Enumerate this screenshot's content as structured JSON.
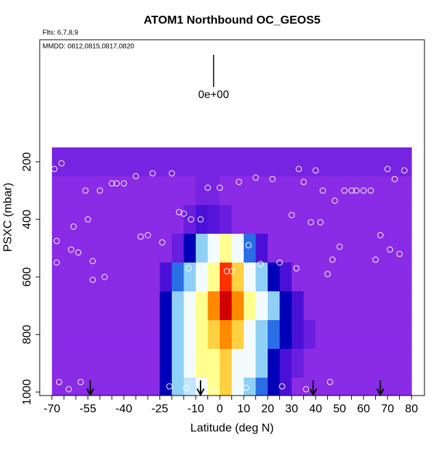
{
  "chart_data": {
    "type": "heatmap",
    "title": "ATOM1 Northbound OC_GEOS5",
    "subtitle": "Flts: 6,7,8,9",
    "annotation": "MMDD: 0812,0815,0817,0820",
    "legend_label": "0e+00",
    "xlabel": "Latitude (deg N)",
    "ylabel": "PSXC (mbar)",
    "xlim": [
      -75.1,
      85.4
    ],
    "ylim": [
      1012,
      -224
    ],
    "xticks": [
      -70,
      -55,
      -40,
      -25,
      -10,
      0,
      10,
      20,
      30,
      40,
      50,
      60,
      70,
      80
    ],
    "xminor": [
      -65,
      -60,
      -50,
      -45,
      -35,
      -30,
      -20,
      -15,
      -5,
      5,
      15,
      25,
      35,
      45,
      55,
      65,
      75
    ],
    "yticks": [
      200,
      400,
      600,
      800,
      1000
    ],
    "x": [
      -70,
      -65,
      -60,
      -55,
      -50,
      -45,
      -40,
      -35,
      -30,
      -25,
      -20,
      -15,
      -10,
      -5,
      0,
      5,
      10,
      15,
      20,
      25,
      30,
      35,
      40,
      45,
      50,
      55,
      60,
      65,
      70,
      75
    ],
    "y": [
      200,
      300,
      400,
      500,
      600,
      700,
      800,
      900,
      1000
    ],
    "z": [
      [
        0.3,
        0.3,
        0.3,
        0.3,
        0.3,
        0.3,
        0.3,
        0.3,
        0.3,
        0.3,
        0.3,
        0.3,
        0.3,
        0.3,
        0.3,
        0.3,
        0.3,
        0.3,
        0.3,
        0.3,
        0.3,
        0.3,
        0.3,
        0.3,
        0.3,
        0.3,
        0.3,
        0.3,
        0.3,
        0.3
      ],
      [
        0,
        0,
        0,
        0,
        0,
        0,
        0,
        0,
        0,
        0,
        0,
        0,
        0.3,
        0.3,
        0,
        0,
        0,
        0,
        0,
        0,
        0,
        0,
        0,
        0,
        0,
        0,
        0,
        0,
        0,
        0
      ],
      [
        0,
        0,
        0,
        0,
        0,
        0,
        0,
        0,
        0,
        0,
        0,
        0.5,
        1,
        0.8,
        0.5,
        0,
        0,
        0,
        0,
        0,
        0,
        0,
        0,
        0,
        0,
        0,
        0,
        0,
        0,
        0
      ],
      [
        0,
        0,
        0,
        0,
        0,
        0,
        0,
        0,
        0,
        0,
        0.5,
        2,
        4,
        5,
        6,
        5,
        3,
        1,
        0,
        0,
        0,
        0,
        0,
        0,
        0,
        0,
        0,
        0,
        0,
        0
      ],
      [
        0,
        0,
        0,
        0,
        0,
        0,
        0,
        0,
        0,
        1,
        3,
        4,
        5,
        6,
        9,
        7,
        5,
        4,
        2,
        1,
        0,
        0,
        0,
        0,
        0,
        0,
        0,
        0,
        0,
        0
      ],
      [
        0,
        0,
        0,
        0,
        0,
        0,
        0,
        0,
        0,
        2,
        4,
        5,
        6,
        8,
        10,
        8,
        6,
        5,
        4,
        2,
        1,
        0,
        0,
        0,
        0,
        0,
        0,
        0,
        0,
        0
      ],
      [
        0,
        0,
        0,
        0,
        0,
        0,
        0,
        0,
        0,
        2,
        4,
        5,
        6,
        7,
        8,
        7,
        5,
        4,
        3,
        2,
        1,
        0.5,
        0,
        0,
        0,
        0,
        0,
        0,
        0,
        0
      ],
      [
        0,
        0,
        0,
        0,
        0,
        0,
        0,
        0,
        0,
        2,
        4,
        5,
        6,
        6,
        7,
        5,
        5,
        4,
        2,
        1,
        0.5,
        0,
        0,
        0,
        0,
        0,
        0,
        0,
        0,
        0
      ],
      [
        0,
        0,
        0,
        0,
        0,
        0,
        0,
        0,
        0,
        2,
        4,
        4.5,
        5,
        6,
        7,
        5,
        4,
        3,
        2,
        1,
        0,
        0,
        0,
        0,
        0,
        0,
        0,
        0,
        0,
        0
      ]
    ],
    "colorscale": [
      [
        0,
        "#8a2be6"
      ],
      [
        1,
        "#4a10d8"
      ],
      [
        2,
        "#0000b8"
      ],
      [
        3,
        "#2a6ee6"
      ],
      [
        4,
        "#8fd0f6"
      ],
      [
        5,
        "#f4fbff"
      ],
      [
        6,
        "#ffff90"
      ],
      [
        7,
        "#ffd040"
      ],
      [
        8,
        "#ff8a00"
      ],
      [
        9,
        "#ff3000"
      ],
      [
        10,
        "#d00000"
      ]
    ],
    "obs_lat": [
      -69,
      -68,
      -68,
      -67,
      -66,
      -63,
      -62,
      -61,
      -59,
      -58,
      -56,
      -55,
      -53,
      -53,
      -50,
      -48,
      -45,
      -43,
      -40,
      -35,
      -33,
      -30,
      -28,
      -24,
      -20,
      -17,
      -15,
      -13,
      -12,
      -8,
      -5,
      0,
      3,
      5,
      8,
      12,
      15,
      17,
      22,
      25,
      30,
      32,
      33,
      35,
      38,
      40,
      42,
      43,
      45,
      47,
      48,
      50,
      52,
      55,
      57,
      60,
      63,
      65,
      67,
      70,
      71,
      73,
      75,
      77,
      -21,
      -14,
      -2,
      11,
      26,
      36,
      46
    ],
    "obs_p": [
      225,
      550,
      475,
      965,
      205,
      990,
      505,
      425,
      515,
      965,
      300,
      400,
      545,
      610,
      300,
      600,
      275,
      275,
      275,
      250,
      460,
      455,
      240,
      480,
      240,
      375,
      380,
      570,
      400,
      400,
      290,
      290,
      580,
      580,
      270,
      490,
      255,
      555,
      260,
      550,
      385,
      570,
      225,
      270,
      410,
      230,
      410,
      300,
      590,
      540,
      335,
      495,
      300,
      300,
      300,
      300,
      300,
      540,
      455,
      225,
      505,
      260,
      520,
      230,
      980,
      985,
      990,
      985,
      980,
      990,
      965
    ],
    "obs_color": "#ffffff",
    "flight_markers": [
      -54,
      -8,
      39,
      67
    ]
  }
}
